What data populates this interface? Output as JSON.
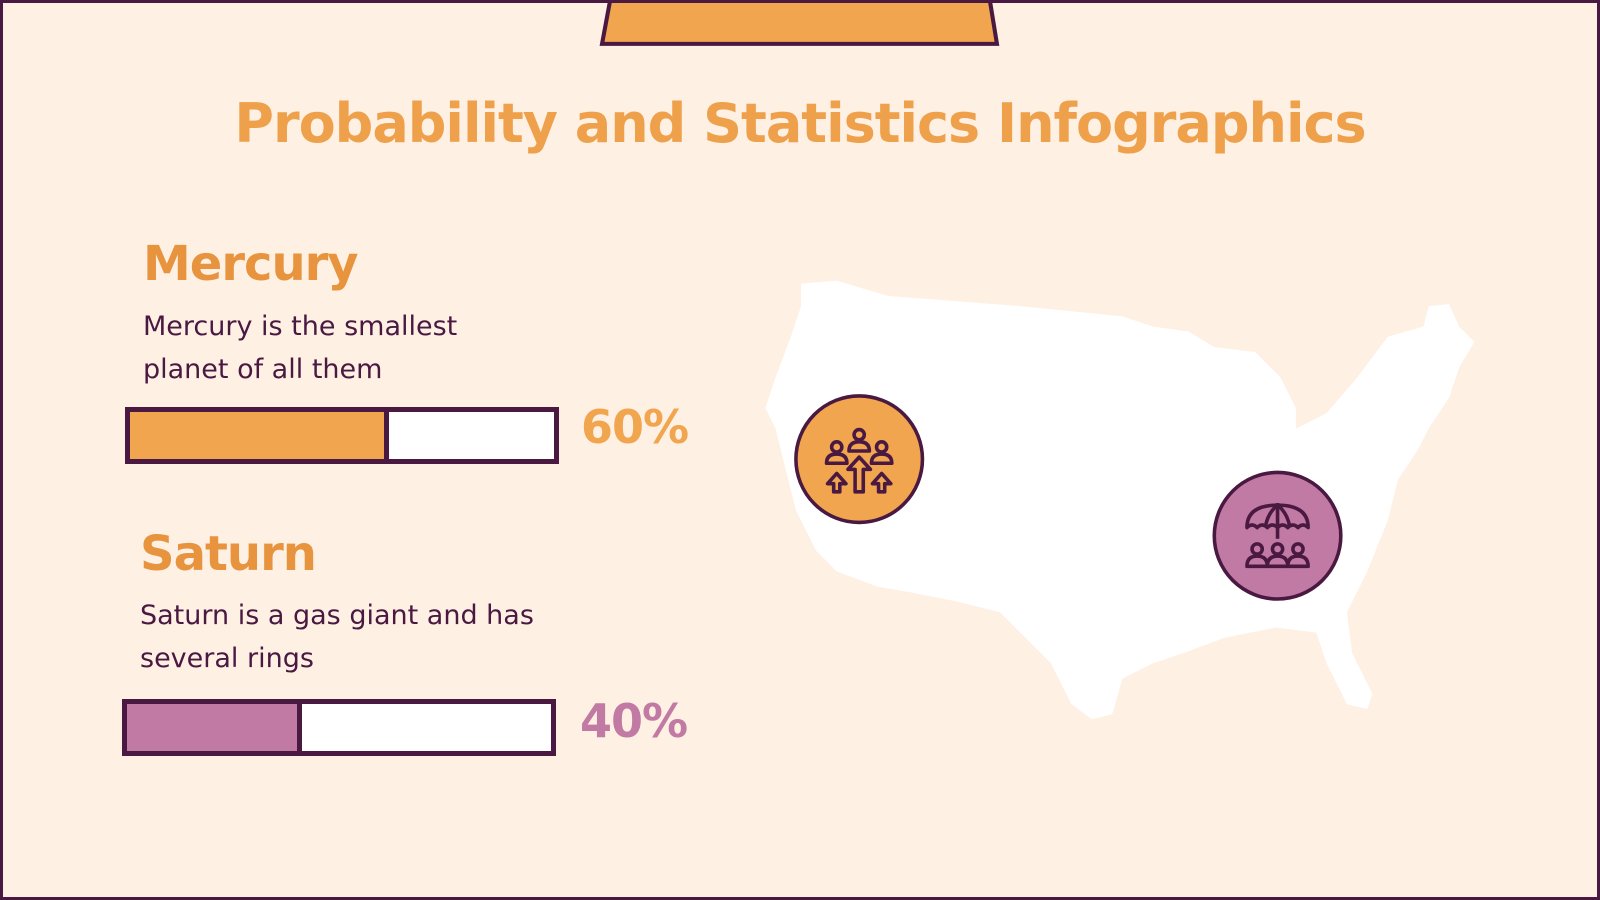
{
  "title": "Probability and Statistics Infographics",
  "colors": {
    "background": "#fef0e3",
    "orange": "#f0a54e",
    "pink": "#c17aa3",
    "dark": "#4a1942",
    "map": "#ffffff"
  },
  "items": [
    {
      "heading": "Mercury",
      "description": "Mercury is the smallest planet of all them",
      "percent_label": "60%",
      "value": 60,
      "color": "#f0a54e",
      "label_color": "#f0a54e"
    },
    {
      "heading": "Saturn",
      "description": "Saturn is a gas giant and has several rings",
      "percent_label": "40%",
      "value": 40,
      "color": "#c17aa3",
      "label_color": "#c17aa3"
    }
  ],
  "map": {
    "region": "United States",
    "markers": [
      {
        "icon": "people-growth-icon",
        "color": "#f0a54e"
      },
      {
        "icon": "umbrella-people-icon",
        "color": "#c17aa3"
      }
    ]
  }
}
